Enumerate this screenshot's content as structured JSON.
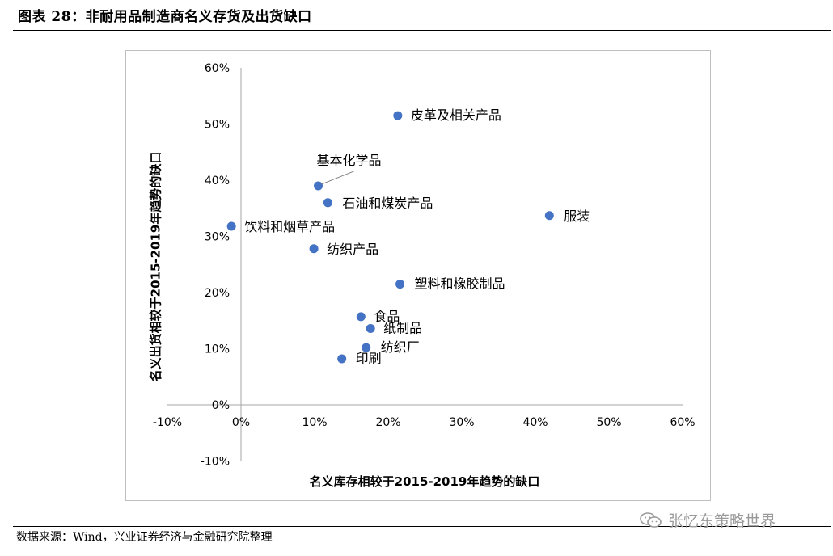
{
  "figure": {
    "title": "图表 28：非耐用品制造商名义存货及出货缺口",
    "source": "数据来源：Wind，兴业证券经济与金融研究院整理",
    "watermark": "张忆东策略世界",
    "watermark_icon": "wechat-icon"
  },
  "chart_data": {
    "type": "scatter",
    "xlabel": "名义库存相较于2015-2019年趋势的缺口",
    "ylabel": "名义出货相较于2015-2019年趋势的缺口",
    "xlim": [
      -10,
      60
    ],
    "ylim": [
      -10,
      60
    ],
    "x_ticks": [
      "-10%",
      "0%",
      "10%",
      "20%",
      "30%",
      "40%",
      "50%",
      "60%"
    ],
    "y_ticks": [
      "-10%",
      "0%",
      "10%",
      "20%",
      "30%",
      "40%",
      "50%",
      "60%"
    ],
    "grid": false,
    "legend": "none",
    "marker_color": "#4472c4",
    "points": [
      {
        "label": "皮革及相关产品",
        "x": 21.3,
        "y": 51.5
      },
      {
        "label": "基本化学品",
        "x": 10.5,
        "y": 39.0
      },
      {
        "label": "石油和煤炭产品",
        "x": 11.8,
        "y": 36.0
      },
      {
        "label": "服装",
        "x": 41.9,
        "y": 33.7
      },
      {
        "label": "饮料和烟草产品",
        "x": -1.3,
        "y": 31.8
      },
      {
        "label": "纺织产品",
        "x": 9.9,
        "y": 27.8
      },
      {
        "label": "塑料和橡胶制品",
        "x": 21.6,
        "y": 21.5
      },
      {
        "label": "食品",
        "x": 16.3,
        "y": 15.7
      },
      {
        "label": "纸制品",
        "x": 17.6,
        "y": 13.6
      },
      {
        "label": "纺织厂",
        "x": 17.0,
        "y": 10.2
      },
      {
        "label": "印刷",
        "x": 13.7,
        "y": 8.2
      }
    ]
  }
}
